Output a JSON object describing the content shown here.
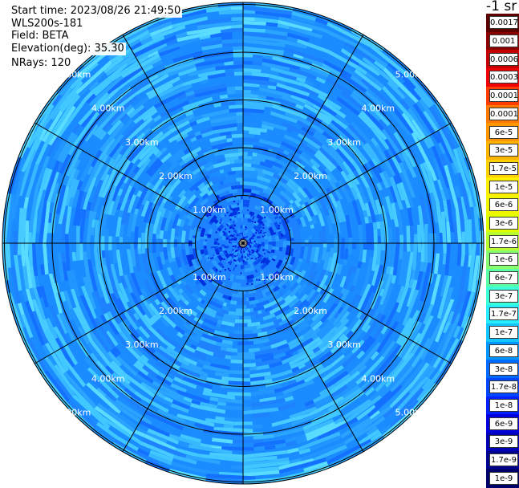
{
  "header": {
    "start_time": "Start time: 2023/08/26 21:49:50",
    "instrument": "WLS200s-181",
    "field": "Field: BETA",
    "elevation": "Elevation(deg): 35.30",
    "nrays": "NRays: 120"
  },
  "chart_data": {
    "type": "heatmap",
    "projection": "polar",
    "field": "BETA",
    "unit": "-1 sr",
    "elevation_deg": 35.3,
    "n_rays": 120,
    "range_rings": {
      "values_km": [
        1,
        2,
        3,
        4,
        5
      ],
      "labels": [
        "1.00km",
        "2.00km",
        "3.00km",
        "4.00km",
        "5.00km"
      ]
    },
    "max_range_km": 6.3,
    "spokes_deg": [
      0,
      30,
      60,
      90,
      120,
      150,
      180,
      210,
      240,
      270,
      300,
      330
    ],
    "colorbar": {
      "labels": [
        "0.0017",
        "0.001",
        "0.0006",
        "0.0003",
        "0.00017",
        "0.0001",
        "6e-5",
        "3e-5",
        "1.7e-5",
        "1e-5",
        "6e-6",
        "3e-6",
        "1.7e-6",
        "1e-6",
        "6e-7",
        "3e-7",
        "1.7e-7",
        "1e-7",
        "6e-8",
        "3e-8",
        "1.7e-8",
        "1e-8",
        "6e-9",
        "3e-9",
        "1.7e-9",
        "1e-9"
      ],
      "colors": [
        "#5c0000",
        "#8a0000",
        "#c40000",
        "#f00000",
        "#ff3c00",
        "#ff7800",
        "#ff9600",
        "#ffb400",
        "#ffd200",
        "#ffef00",
        "#f2f500",
        "#e0ff00",
        "#b8ff30",
        "#88ff70",
        "#5cffa4",
        "#3cffd8",
        "#28ecff",
        "#14c4ff",
        "#0096ff",
        "#006cff",
        "#0046ff",
        "#0020ff",
        "#0000e0",
        "#0000b4",
        "#000090",
        "#00006a"
      ]
    },
    "dominant_value_range": [
      "1.7e-8",
      "1.7e-7"
    ]
  }
}
